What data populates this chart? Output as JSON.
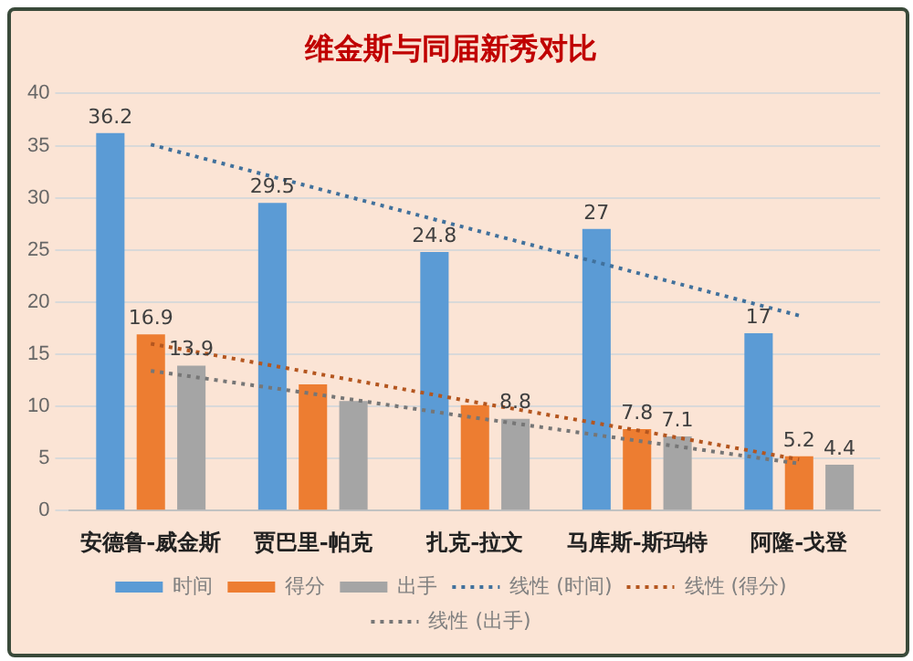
{
  "chart_data": {
    "type": "bar",
    "title": "维金斯与同届新秀对比",
    "categories": [
      "安德鲁-威金斯",
      "贾巴里-帕克",
      "扎克-拉文",
      "马库斯-斯玛特",
      "阿隆-戈登"
    ],
    "series": [
      {
        "name": "时间",
        "color": "#5b9bd5",
        "values": [
          36.2,
          29.5,
          24.8,
          27,
          17
        ],
        "value_labels": [
          "36.2",
          "29.5",
          "24.8",
          "27",
          "17"
        ]
      },
      {
        "name": "得分",
        "color": "#ed7d31",
        "values": [
          16.9,
          12.1,
          10.1,
          7.8,
          5.2
        ],
        "value_labels": [
          "16.9",
          null,
          null,
          "7.8",
          "5.2"
        ]
      },
      {
        "name": "出手",
        "color": "#a5a5a5",
        "values": [
          13.9,
          10.5,
          8.8,
          7.1,
          4.4
        ],
        "value_labels": [
          "13.9",
          null,
          "8.8",
          "7.1",
          "4.4"
        ]
      },
      {
        "name": "线性 (时间)",
        "type": "line",
        "line_style": "dotted",
        "marker": "none",
        "color": "#41719c",
        "values": [
          35.1,
          31,
          26.9,
          22.8,
          18.7
        ]
      },
      {
        "name": "线性 (得分)",
        "type": "line",
        "line_style": "dotted",
        "marker": "none",
        "color": "#b4561f",
        "values": [
          16,
          13.2,
          10.4,
          7.7,
          4.9
        ]
      },
      {
        "name": "线性 (出手)",
        "type": "line",
        "line_style": "dotted",
        "marker": "none",
        "color": "#767676",
        "values": [
          13.4,
          11.2,
          8.9,
          6.7,
          4.5
        ]
      }
    ],
    "ylim": [
      0,
      40
    ],
    "yticks": [
      0,
      5,
      10,
      15,
      20,
      25,
      30,
      35,
      40
    ],
    "grid": "y",
    "legend": "bottom"
  }
}
